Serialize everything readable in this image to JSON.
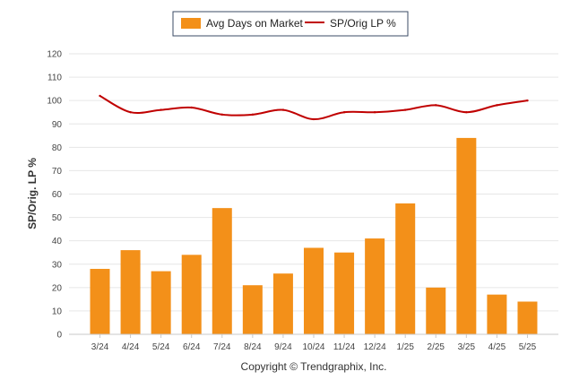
{
  "chart_data": {
    "type": "bar",
    "categories": [
      "3/24",
      "4/24",
      "5/24",
      "6/24",
      "7/24",
      "8/24",
      "9/24",
      "10/24",
      "11/24",
      "12/24",
      "1/25",
      "2/25",
      "3/25",
      "4/25",
      "5/25"
    ],
    "series": [
      {
        "name": "Avg Days on Market",
        "type": "bar",
        "color": "#f39019",
        "values": [
          28,
          36,
          27,
          34,
          54,
          21,
          26,
          37,
          35,
          41,
          56,
          20,
          84,
          17,
          14
        ]
      },
      {
        "name": "SP/Orig LP %",
        "type": "line",
        "color": "#c00000",
        "values": [
          102,
          95,
          96,
          97,
          94,
          94,
          96,
          92,
          95,
          95,
          96,
          98,
          95,
          98,
          100
        ]
      }
    ],
    "ylabel": "SP/Orig. LP %",
    "xlabel": "",
    "ylim": [
      0,
      120
    ],
    "yticks": [
      0,
      10,
      20,
      30,
      40,
      50,
      60,
      70,
      80,
      90,
      100,
      110,
      120
    ],
    "grid": true,
    "legend_position": "top-center"
  },
  "footer": {
    "copyright": "Copyright © Trendgraphix, Inc."
  }
}
